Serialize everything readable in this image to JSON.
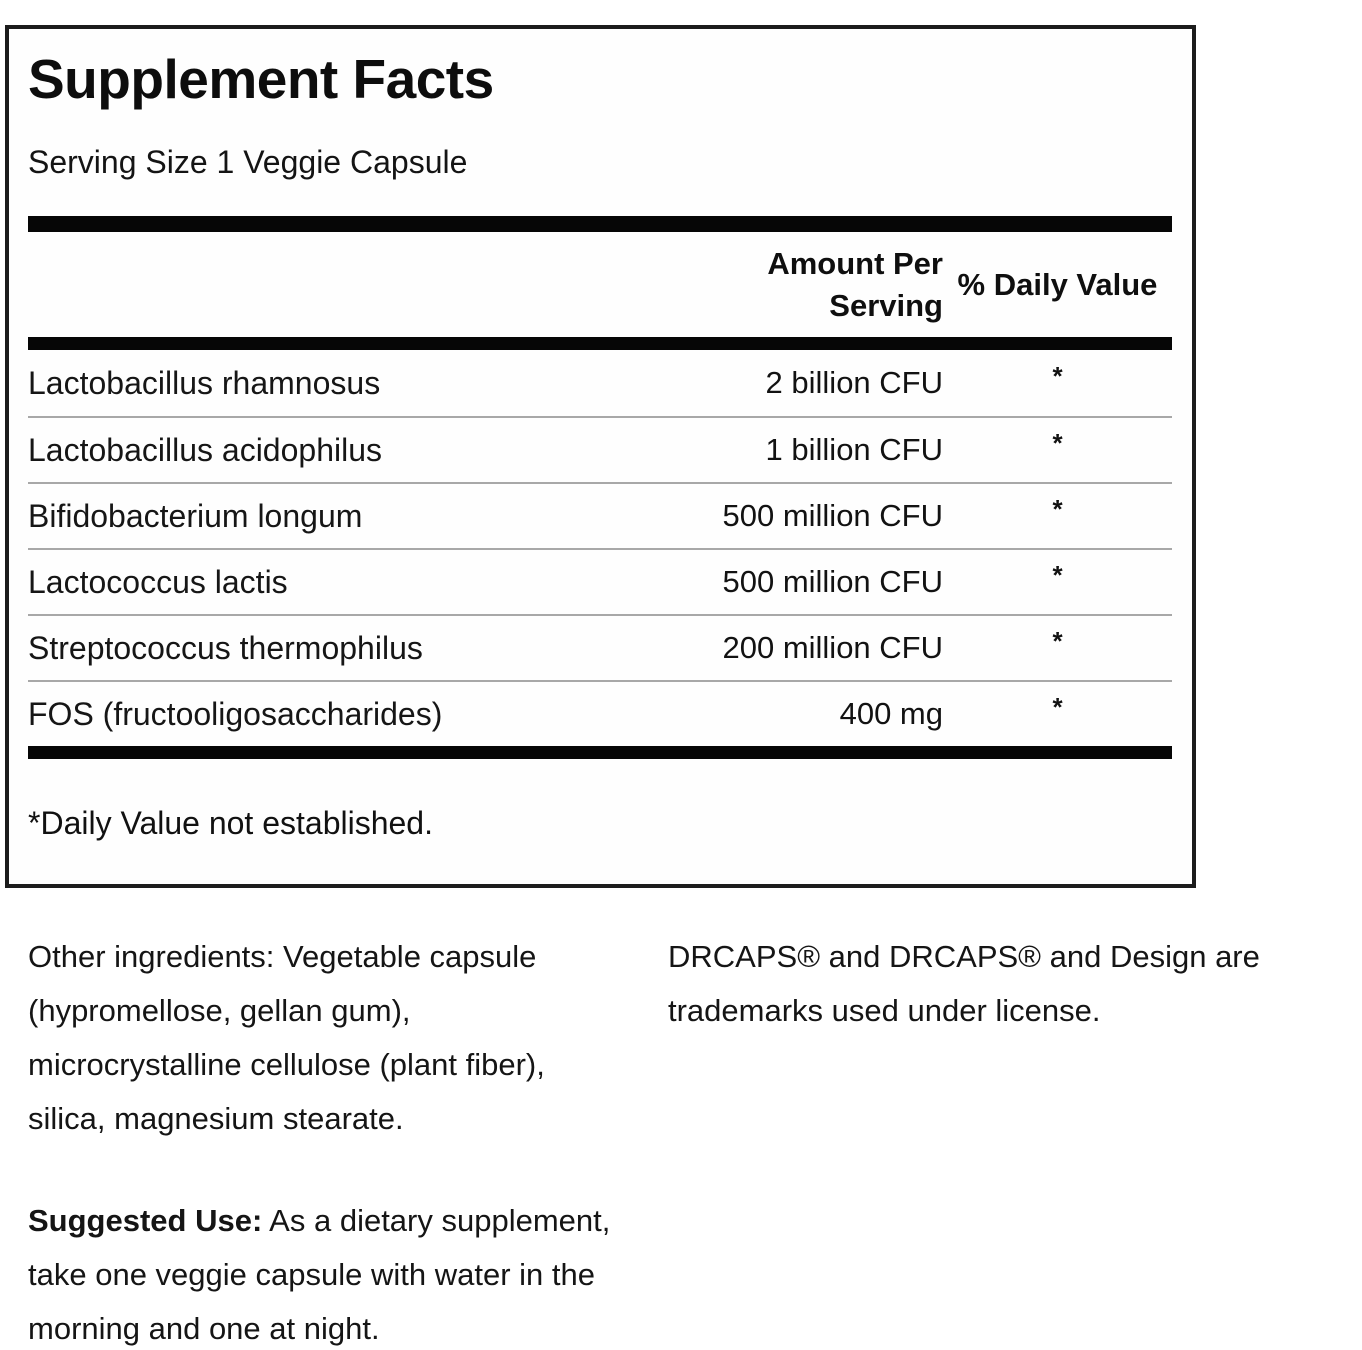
{
  "colors": {
    "ink": "#121212",
    "bar": "#060606",
    "separator": "#a8a8a8",
    "border": "#1c1c1c",
    "background": "#ffffff"
  },
  "panel": {
    "title": "Supplement Facts",
    "serving_size": "Serving Size 1 Veggie Capsule",
    "header": {
      "amount_line1": "Amount Per",
      "amount_line2": "Serving",
      "daily_value": "% Daily Value"
    },
    "rows": [
      {
        "name": "Lactobacillus rhamnosus",
        "amount": "2 billion CFU",
        "dv": "*"
      },
      {
        "name": "Lactobacillus acidophilus",
        "amount": "1 billion CFU",
        "dv": "*"
      },
      {
        "name": "Bifidobacterium longum",
        "amount": "500 million CFU",
        "dv": "*"
      },
      {
        "name": "Lactococcus lactis",
        "amount": "500 million CFU",
        "dv": "*"
      },
      {
        "name": "Streptococcus thermophilus",
        "amount": "200 million CFU",
        "dv": "*"
      },
      {
        "name": "FOS (fructooligosaccharides)",
        "amount": "400 mg",
        "dv": "*"
      }
    ],
    "footnote": "*Daily Value not established."
  },
  "details": {
    "other_ingredients_lines": [
      "Other ingredients: Vegetable capsule",
      "(hypromellose, gellan gum),",
      "microcrystalline cellulose (plant fiber),",
      "silica, magnesium stearate."
    ],
    "trademark_lines": [
      "DRCAPS® and DRCAPS® and Design are",
      "trademarks used under license."
    ],
    "suggested_use_label": "Suggested Use:",
    "suggested_use_lines": [
      " As a dietary supplement,",
      "take one veggie capsule with water in the",
      "morning and one at night."
    ]
  }
}
